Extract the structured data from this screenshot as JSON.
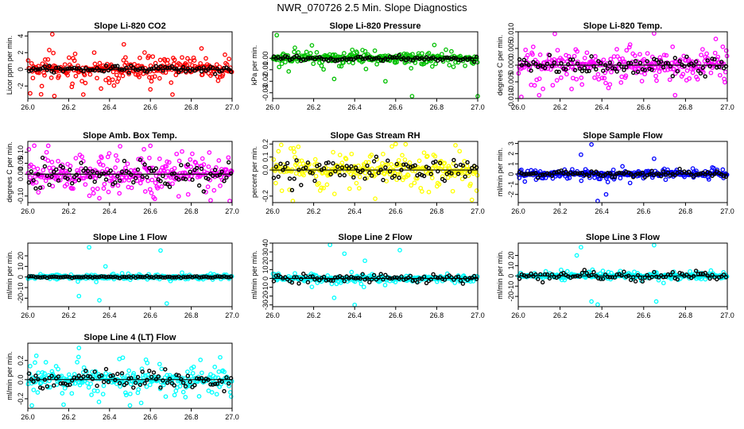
{
  "title": "NWR_070726  2.5 Min. Slope Diagnostics",
  "colors": {
    "black_points": "#000000"
  },
  "chart_data": [
    {
      "type": "scatter",
      "title": "Slope Li-820 CO2",
      "ylabel": "Licor ppm per min.",
      "color": "#ff0000",
      "xlim": [
        26.0,
        27.0
      ],
      "ylim": [
        -3.5,
        4.5
      ],
      "x_ticks": [
        "26.0",
        "26.2",
        "26.4",
        "26.6",
        "26.8",
        "27.0"
      ],
      "y_ticks": [
        "-2",
        "0",
        "2",
        "4"
      ],
      "y_tick_values": [
        -2,
        0,
        2,
        4
      ],
      "spread": 1.1,
      "spread_black": 0.35,
      "outliers": [
        [
          26.12,
          4.2
        ],
        [
          26.13,
          -3.2
        ],
        [
          26.47,
          3.0
        ],
        [
          26.6,
          -2.4
        ],
        [
          26.85,
          2.5
        ]
      ]
    },
    {
      "type": "scatter",
      "title": "Slope Li-820 Pressure",
      "ylabel": "kPa per min.",
      "color": "#00c000",
      "xlim": [
        26.0,
        27.0
      ],
      "ylim": [
        -0.035,
        0.023
      ],
      "x_ticks": [
        "26.0",
        "26.2",
        "26.4",
        "26.6",
        "26.8",
        "27.0"
      ],
      "y_ticks": [
        "-0.03",
        "-0.02",
        "-0.01",
        "0.00"
      ],
      "y_tick_values": [
        -0.03,
        -0.02,
        -0.01,
        0.0
      ],
      "spread": 0.004,
      "spread_black": 0.002,
      "outliers": [
        [
          26.02,
          0.02
        ],
        [
          26.3,
          -0.018
        ],
        [
          26.55,
          -0.02
        ],
        [
          26.68,
          -0.033
        ],
        [
          27.0,
          -0.033
        ]
      ]
    },
    {
      "type": "scatter",
      "title": "Slope Li-820 Temp.",
      "ylabel": "degrees C per min.",
      "color": "#ff00ff",
      "xlim": [
        26.0,
        27.0
      ],
      "ylim": [
        -0.01,
        0.01
      ],
      "x_ticks": [
        "26.0",
        "26.2",
        "26.4",
        "26.6",
        "26.8",
        "27.0"
      ],
      "y_ticks": [
        "-0.010",
        "-0.005",
        "0.000",
        "0.005",
        "0.010"
      ],
      "y_tick_values": [
        -0.01,
        -0.005,
        0.0,
        0.005,
        0.01
      ],
      "spread": 0.0035,
      "spread_black": 0.0025,
      "outliers": [
        [
          26.1,
          -0.009
        ],
        [
          26.65,
          0.0095
        ],
        [
          26.75,
          -0.009
        ]
      ]
    },
    {
      "type": "scatter",
      "title": "Slope Amb. Box Temp.",
      "ylabel": "degrees C per min.",
      "color": "#ff00ff",
      "xlim": [
        26.0,
        27.0
      ],
      "ylim": [
        -0.13,
        0.15
      ],
      "x_ticks": [
        "26.0",
        "26.2",
        "26.4",
        "26.6",
        "26.8",
        "27.0"
      ],
      "y_ticks": [
        "-0.10",
        "0.00",
        "0.05",
        "0.10"
      ],
      "y_tick_values": [
        -0.1,
        0.0,
        0.05,
        0.1
      ],
      "spread": 0.06,
      "spread_black": 0.05,
      "outliers": [
        [
          26.1,
          0.13
        ],
        [
          26.35,
          -0.11
        ],
        [
          26.6,
          0.13
        ]
      ]
    },
    {
      "type": "scatter",
      "title": "Slope Gas Stream RH",
      "ylabel": "percent per min.",
      "color": "#ffff00",
      "xlim": [
        26.0,
        27.0
      ],
      "ylim": [
        -0.25,
        0.22
      ],
      "x_ticks": [
        "26.0",
        "26.2",
        "26.4",
        "26.6",
        "26.8",
        "27.0"
      ],
      "y_ticks": [
        "-0.2",
        "0.0",
        "0.1",
        "0.2"
      ],
      "y_tick_values": [
        -0.2,
        0.0,
        0.1,
        0.2
      ],
      "spread": 0.09,
      "spread_black": 0.08,
      "outliers": [
        [
          26.5,
          -0.22
        ],
        [
          26.6,
          0.2
        ]
      ]
    },
    {
      "type": "scatter",
      "title": "Slope Sample Flow",
      "ylabel": "ml/min per min.",
      "color": "#0000ff",
      "xlim": [
        26.0,
        27.0
      ],
      "ylim": [
        -2.8,
        3.2
      ],
      "x_ticks": [
        "26.0",
        "26.2",
        "26.4",
        "26.6",
        "26.8",
        "27.0"
      ],
      "y_ticks": [
        "-2",
        "-1",
        "0",
        "1",
        "2",
        "3"
      ],
      "y_tick_values": [
        -2,
        -1,
        0,
        1,
        2,
        3
      ],
      "spread": 0.3,
      "spread_black": 0.25,
      "outliers": [
        [
          26.35,
          2.9
        ],
        [
          26.38,
          -2.7
        ],
        [
          26.3,
          1.9
        ],
        [
          26.42,
          -2.0
        ],
        [
          26.65,
          1.5
        ]
      ]
    },
    {
      "type": "scatter",
      "title": "Slope Line 1 Flow",
      "ylabel": "ml/min per min.",
      "color": "#00ffff",
      "xlim": [
        26.0,
        27.0
      ],
      "ylim": [
        -28,
        32
      ],
      "x_ticks": [
        "26.0",
        "26.2",
        "26.4",
        "26.6",
        "26.8",
        "27.0"
      ],
      "y_ticks": [
        "-20",
        "-10",
        "0",
        "10",
        "20"
      ],
      "y_tick_values": [
        -20,
        -10,
        0,
        10,
        20
      ],
      "spread": 1.5,
      "spread_black": 0.6,
      "outliers": [
        [
          26.3,
          28
        ],
        [
          26.35,
          -22
        ],
        [
          26.25,
          -18
        ],
        [
          26.65,
          25
        ],
        [
          26.68,
          -25
        ],
        [
          26.38,
          10
        ]
      ]
    },
    {
      "type": "scatter",
      "title": "Slope Line 2 Flow",
      "ylabel": "ml/min per min.",
      "color": "#00ffff",
      "xlim": [
        26.0,
        27.0
      ],
      "ylim": [
        -32,
        40
      ],
      "x_ticks": [
        "26.0",
        "26.2",
        "26.4",
        "26.6",
        "26.8",
        "27.0"
      ],
      "y_ticks": [
        "-30",
        "-20",
        "-10",
        "0",
        "10",
        "20",
        "30",
        "40"
      ],
      "y_tick_values": [
        -30,
        -20,
        -10,
        0,
        10,
        20,
        30,
        40
      ],
      "spread": 2.5,
      "spread_black": 4,
      "outliers": [
        [
          26.28,
          38
        ],
        [
          26.35,
          28
        ],
        [
          26.4,
          -30
        ],
        [
          26.3,
          -22
        ],
        [
          26.62,
          32
        ],
        [
          26.45,
          20
        ]
      ]
    },
    {
      "type": "scatter",
      "title": "Slope Line 3 Flow",
      "ylabel": "ml/min per min.",
      "color": "#00ffff",
      "xlim": [
        26.0,
        27.0
      ],
      "ylim": [
        -30,
        32
      ],
      "x_ticks": [
        "26.0",
        "26.2",
        "26.4",
        "26.6",
        "26.8",
        "27.0"
      ],
      "y_ticks": [
        "-20",
        "-10",
        "0",
        "10",
        "20"
      ],
      "y_tick_values": [
        -20,
        -10,
        0,
        10,
        20
      ],
      "spread": 2.5,
      "spread_black": 3,
      "outliers": [
        [
          26.3,
          28
        ],
        [
          26.38,
          -28
        ],
        [
          26.35,
          -25
        ],
        [
          26.65,
          30
        ],
        [
          26.66,
          -25
        ],
        [
          26.28,
          20
        ]
      ]
    },
    {
      "type": "scatter",
      "title": "Slope Line 4 (LT) Flow",
      "ylabel": "ml/min per min.",
      "color": "#00ffff",
      "xlim": [
        26.0,
        27.0
      ],
      "ylim": [
        -0.3,
        0.38
      ],
      "x_ticks": [
        "26.0",
        "26.2",
        "26.4",
        "26.6",
        "26.8",
        "27.0"
      ],
      "y_ticks": [
        "-0.2",
        "0.0",
        "0.2"
      ],
      "y_tick_values": [
        -0.2,
        0.0,
        0.2
      ],
      "spread": 0.11,
      "spread_black": 0.08,
      "outliers": [
        [
          26.25,
          0.33
        ],
        [
          26.5,
          -0.27
        ],
        [
          26.02,
          -0.27
        ]
      ]
    }
  ]
}
